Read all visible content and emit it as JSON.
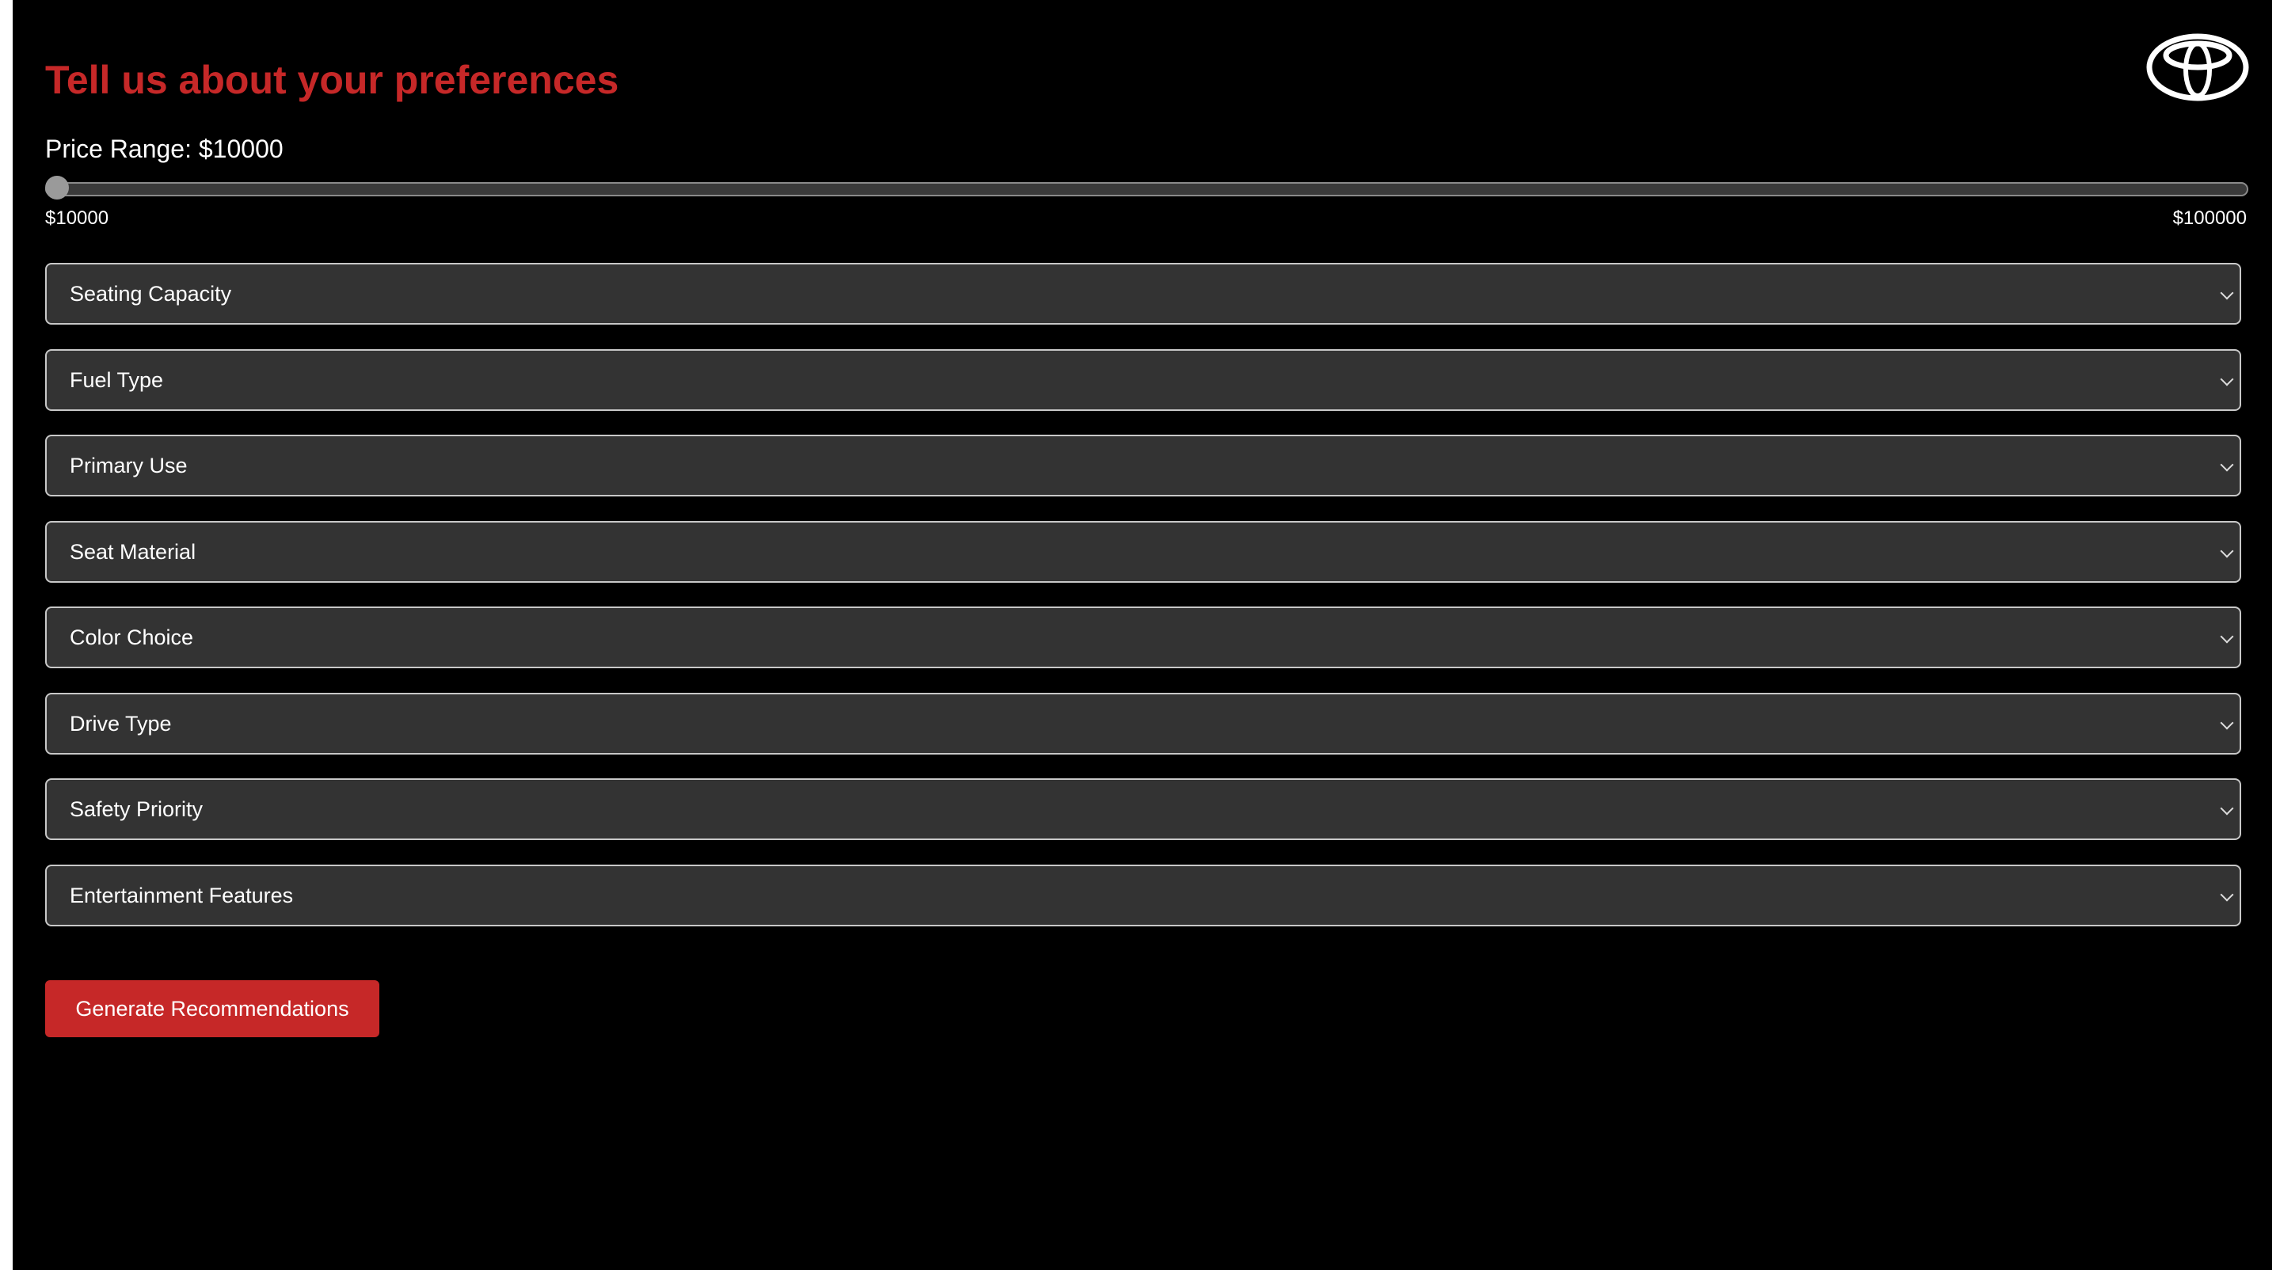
{
  "title": "Tell us about your preferences",
  "price": {
    "label": "Price Range: $10000",
    "min_label": "$10000",
    "max_label": "$100000",
    "min": 10000,
    "max": 100000,
    "value": 10000
  },
  "selects": [
    {
      "placeholder": "Seating Capacity"
    },
    {
      "placeholder": "Fuel Type"
    },
    {
      "placeholder": "Primary Use"
    },
    {
      "placeholder": "Seat Material"
    },
    {
      "placeholder": "Color Choice"
    },
    {
      "placeholder": "Drive Type"
    },
    {
      "placeholder": "Safety Priority"
    },
    {
      "placeholder": "Entertainment Features"
    }
  ],
  "button_label": "Generate Recommendations",
  "colors": {
    "accent": "#c62828",
    "background": "#000000",
    "field": "#333333"
  },
  "logo": "toyota-logo"
}
